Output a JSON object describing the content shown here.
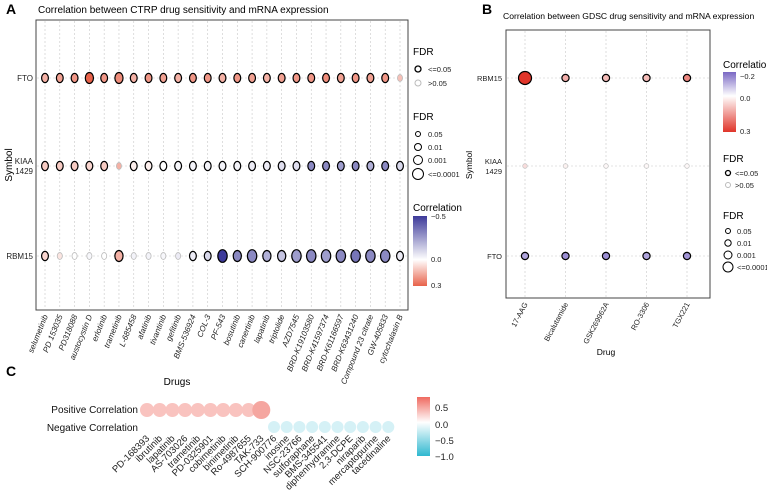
{
  "chart_data": [
    {
      "panel": "A",
      "type": "scatter",
      "title": "Correlation between CTRP drug sensitivity and mRNA expression",
      "xlabel": "",
      "ylabel": "Symbol",
      "rows": [
        "FTO",
        "KIAA\n1429",
        "RBM15"
      ],
      "categories": [
        "selumetinib",
        "PD 153035",
        "PD318088",
        "austocystin D",
        "erlotinib",
        "trametinib",
        "L-685458",
        "afatinib",
        "tivantinib",
        "gefitinib",
        "BMS-536924",
        "COL-3",
        "PF-543",
        "bosutinib",
        "canertinib",
        "lapatinib",
        "triptolide",
        "AZD7545",
        "BRD-K19103580",
        "BRD-K41597374",
        "BRD-K61166597",
        "BRD-K63431240",
        "Compound 23 citrate",
        "GW-405833",
        "cytochalasin B"
      ],
      "series": [
        {
          "name": "FTO",
          "correlation": [
            0.15,
            0.18,
            0.2,
            0.3,
            0.2,
            0.22,
            0.15,
            0.2,
            0.18,
            0.15,
            0.2,
            0.2,
            0.15,
            0.2,
            0.18,
            0.15,
            0.18,
            0.2,
            0.2,
            0.22,
            0.18,
            0.2,
            0.18,
            0.2,
            0.12
          ],
          "fdr": [
            0.01,
            0.01,
            0.01,
            0.001,
            0.01,
            0.001,
            0.01,
            0.01,
            0.01,
            0.01,
            0.01,
            0.01,
            0.01,
            0.01,
            0.01,
            0.01,
            0.01,
            0.01,
            0.01,
            0.01,
            0.01,
            0.01,
            0.01,
            0.01,
            0.05
          ]
        },
        {
          "name": "KIAA\n1429",
          "correlation": [
            0.1,
            0.1,
            0.1,
            0.08,
            0.1,
            0.15,
            0.03,
            0.03,
            0.0,
            -0.02,
            -0.03,
            -0.03,
            -0.03,
            -0.03,
            -0.05,
            -0.05,
            -0.08,
            -0.08,
            -0.3,
            -0.3,
            -0.25,
            -0.3,
            -0.2,
            -0.3,
            -0.1
          ],
          "fdr": [
            0.01,
            0.01,
            0.01,
            0.01,
            0.01,
            0.05,
            0.01,
            0.01,
            0.01,
            0.01,
            0.01,
            0.01,
            0.01,
            0.01,
            0.01,
            0.01,
            0.01,
            0.01,
            0.01,
            0.01,
            0.01,
            0.01,
            0.01,
            0.01,
            0.01
          ]
        },
        {
          "name": "RBM15",
          "correlation": [
            0.08,
            0.05,
            0.0,
            -0.02,
            0.0,
            0.15,
            -0.03,
            -0.03,
            -0.02,
            -0.05,
            -0.05,
            -0.1,
            -0.6,
            -0.3,
            -0.3,
            -0.2,
            -0.15,
            -0.25,
            -0.3,
            -0.25,
            -0.3,
            -0.35,
            -0.3,
            -0.3,
            -0.05
          ],
          "fdr": [
            0.01,
            0.05,
            0.05,
            0.05,
            0.05,
            0.001,
            0.05,
            0.05,
            0.05,
            0.05,
            0.01,
            0.01,
            0.0001,
            0.001,
            0.0001,
            0.001,
            0.001,
            0.0001,
            0.0001,
            0.0001,
            0.0001,
            0.0001,
            0.0001,
            0.0001,
            0.01
          ]
        }
      ],
      "legend_fdr_outline": {
        "title": "FDR",
        "items": [
          "<=0.05",
          ">0.05"
        ]
      },
      "legend_fdr_size": {
        "title": "FDR",
        "items": [
          "0.05",
          "0.01",
          "0.001",
          "<=0.0001"
        ]
      },
      "legend_correlation": {
        "title": "Correlation",
        "ticks": [
          "−0.5",
          "0.0",
          "0.3"
        ],
        "range": [
          -0.5,
          0.3
        ]
      },
      "colors": {
        "negative": "#3d3a9a",
        "mid": "#ffffff",
        "positive": "#e8624a"
      }
    },
    {
      "panel": "B",
      "type": "scatter",
      "title": "Correlation between GDSC drug sensitivity and mRNA expression",
      "xlabel": "Drug",
      "ylabel": "Symbol",
      "rows": [
        "RBM15",
        "KIAA\n1429",
        "FTO"
      ],
      "categories": [
        "17-AAG",
        "Bicalutamide",
        "GSK269962A",
        "RO-3306",
        "TGX221"
      ],
      "series": [
        {
          "name": "RBM15",
          "correlation": [
            0.3,
            0.12,
            0.1,
            0.1,
            0.18
          ],
          "fdr": [
            0.0001,
            0.01,
            0.01,
            0.01,
            0.01
          ]
        },
        {
          "name": "KIAA\n1429",
          "correlation": [
            0.05,
            0.02,
            0.01,
            0.01,
            0.01
          ],
          "fdr": [
            0.05,
            0.05,
            0.05,
            0.05,
            0.05
          ]
        },
        {
          "name": "FTO",
          "correlation": [
            -0.12,
            -0.15,
            -0.15,
            -0.12,
            -0.14
          ],
          "fdr": [
            0.01,
            0.01,
            0.01,
            0.01,
            0.01
          ]
        }
      ],
      "legend_correlation": {
        "title": "Correlation",
        "ticks": [
          "−0.2",
          "0.0",
          "0.3"
        ],
        "range": [
          -0.2,
          0.3
        ]
      },
      "legend_fdr_outline": {
        "title": "FDR",
        "items": [
          "<=0.05",
          ">0.05"
        ]
      },
      "legend_fdr_size": {
        "title": "FDR",
        "items": [
          "0.05",
          "0.01",
          "0.001",
          "<=0.0001"
        ]
      }
    },
    {
      "panel": "C",
      "type": "scatter",
      "title": "Drugs",
      "rows": [
        "Positive Correlation",
        "Negative Correlation"
      ],
      "categories": [
        "PD-168393",
        "ibrutinib",
        "lapatinib",
        "AS-703026",
        "trametinib",
        "PD-0325901",
        "cobimetinib",
        "binimetinib",
        "Ro-4987655",
        "TAK-733",
        "SCH-900776",
        "inosine",
        "NSC-23766",
        "sulforaphane",
        "BMS-345541",
        "diphenhydramine",
        "2,3-DCPE",
        "niraparib",
        "mercaptopurine",
        "tacedinaline"
      ],
      "positive": [
        0.3,
        0.3,
        0.3,
        0.3,
        0.3,
        0.3,
        0.3,
        0.3,
        0.3,
        0.45,
        null,
        null,
        null,
        null,
        null,
        null,
        null,
        null,
        null,
        null
      ],
      "negative": [
        null,
        null,
        null,
        null,
        null,
        null,
        null,
        null,
        null,
        null,
        -0.2,
        -0.2,
        -0.2,
        -0.2,
        -0.2,
        -0.2,
        -0.2,
        -0.2,
        -0.2,
        -0.2
      ],
      "legend_correlation": {
        "ticks": [
          "0.5",
          "0.0",
          "−0.5",
          "−1.0"
        ],
        "range": [
          -1.0,
          0.75
        ]
      }
    }
  ]
}
